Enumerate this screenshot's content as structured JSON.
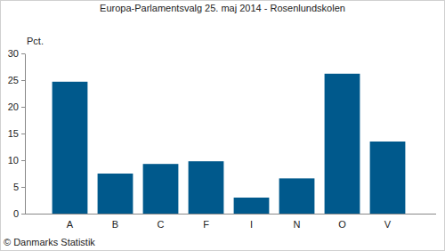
{
  "chart_data": {
    "type": "bar",
    "title": "Europa-Parlamentsvalg 25. maj 2014 - Rosenlundskolen",
    "y_label": "Pct.",
    "source": "© Danmarks Statistik",
    "categories": [
      "A",
      "B",
      "C",
      "F",
      "I",
      "N",
      "O",
      "V"
    ],
    "values": [
      24.7,
      7.5,
      9.3,
      9.8,
      3.0,
      6.6,
      26.2,
      13.5
    ],
    "color": "#00598c",
    "ylim": [
      0,
      30
    ],
    "yticks": [
      0,
      5,
      10,
      15,
      20,
      25,
      30
    ],
    "grid": false
  }
}
